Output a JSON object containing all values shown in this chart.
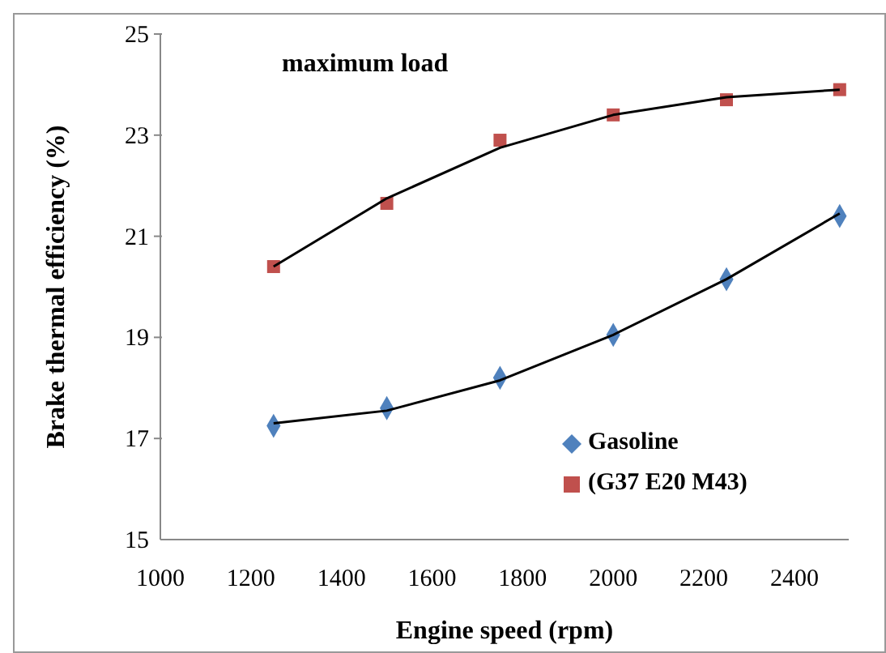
{
  "chart_data": {
    "type": "scatter",
    "title": "maximum load",
    "xlabel": "Engine speed (rpm)",
    "ylabel": "Brake thermal efficiency (%)",
    "xlim": [
      1000,
      2520
    ],
    "xticks": [
      1000,
      1200,
      1400,
      1600,
      1800,
      2000,
      2200,
      2400
    ],
    "ylim": [
      15,
      25
    ],
    "yticks": [
      15,
      17,
      19,
      21,
      23,
      25
    ],
    "grid": false,
    "legend": "bottom right",
    "series": [
      {
        "name": "Gasoline",
        "type": "scatter",
        "marker": "diamond",
        "color": "#4f81bd",
        "x": [
          1250,
          1500,
          1750,
          2000,
          2250,
          2500
        ],
        "values": [
          17.25,
          17.6,
          18.2,
          19.05,
          20.15,
          21.4
        ]
      },
      {
        "name": "(G37 E20 M43)",
        "type": "scatter",
        "marker": "square",
        "color": "#c0504d",
        "x": [
          1250,
          1500,
          1750,
          2000,
          2250,
          2500
        ],
        "values": [
          20.4,
          21.65,
          22.9,
          23.4,
          23.7,
          23.9
        ]
      },
      {
        "type": "line",
        "color": "#000000",
        "marker": "none",
        "x": [
          1250,
          1500,
          1750,
          2000,
          2250,
          2500
        ],
        "values": [
          17.3,
          17.55,
          18.15,
          19.05,
          20.15,
          21.45
        ]
      },
      {
        "type": "line",
        "color": "#000000",
        "marker": "none",
        "x": [
          1250,
          1500,
          1750,
          2000,
          2250,
          2500
        ],
        "values": [
          20.4,
          21.75,
          22.75,
          23.4,
          23.75,
          23.9
        ]
      }
    ]
  }
}
